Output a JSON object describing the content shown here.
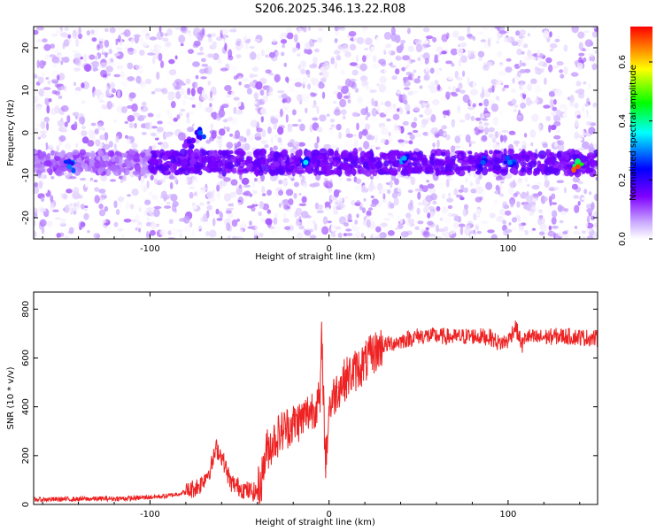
{
  "title": "S206.2025.346.13.22.R08",
  "chart_data": [
    {
      "type": "heatmap",
      "name": "spectrogram",
      "xlabel": "Height of straight line (km)",
      "ylabel": "Frequency (Hz)",
      "xlim": [
        -165,
        150
      ],
      "ylim": [
        -25,
        25
      ],
      "xticks": [
        -100,
        0,
        100
      ],
      "xtick_labels": [
        "-100",
        "0",
        "100"
      ],
      "yticks": [
        -20,
        -10,
        0,
        10,
        20
      ],
      "ytick_labels": [
        "-20",
        "-10",
        "0",
        "10",
        "20"
      ],
      "colorbar": {
        "label": "Normalized spectral amplitude",
        "range": [
          0,
          0.72
        ],
        "ticks": [
          0,
          0.2,
          0.4,
          0.6
        ],
        "tick_labels": [
          "0.0",
          "0.2",
          "0.4",
          "0.6"
        ],
        "colormap": [
          "#ffffff",
          "#7f00ff",
          "#0000ff",
          "#00ffff",
          "#00ff00",
          "#ffff00",
          "#ff0000"
        ]
      },
      "signal_band": {
        "frequency": -7,
        "description_points": [
          {
            "x": -145,
            "y": -8,
            "v": 0.3
          },
          {
            "x": -78,
            "y": -2,
            "v": 0.18
          },
          {
            "x": -72,
            "y": 0,
            "v": 0.28
          },
          {
            "x": -13,
            "y": -7,
            "v": 0.35
          },
          {
            "x": 42,
            "y": -6,
            "v": 0.32
          },
          {
            "x": 86,
            "y": -7,
            "v": 0.28
          },
          {
            "x": 101,
            "y": -7,
            "v": 0.3
          },
          {
            "x": 139,
            "y": -8,
            "v": 0.68
          }
        ]
      }
    },
    {
      "type": "line",
      "name": "snr",
      "xlabel": "Height of straight line (km)",
      "ylabel": "SNR (10 * v/v)",
      "xlim": [
        -165,
        150
      ],
      "ylim": [
        0,
        870
      ],
      "xticks": [
        -100,
        0,
        100
      ],
      "xtick_labels": [
        "-100",
        "0",
        "100"
      ],
      "yticks": [
        0,
        200,
        400,
        600,
        800
      ],
      "ytick_labels": [
        "0",
        "200",
        "400",
        "600",
        "800"
      ],
      "color": "#ee2222",
      "series": [
        {
          "name": "SNR",
          "x": [
            -165,
            -140,
            -110,
            -90,
            -80,
            -72,
            -66,
            -63,
            -60,
            -55,
            -50,
            -45,
            -41,
            -38,
            -35,
            -30,
            -25,
            -20,
            -15,
            -10,
            -5,
            -4,
            -2,
            0,
            5,
            10,
            15,
            20,
            25,
            30,
            40,
            50,
            60,
            70,
            80,
            90,
            95,
            100,
            104,
            108,
            110,
            115,
            120,
            130,
            140,
            150
          ],
          "y": [
            20,
            22,
            25,
            35,
            50,
            80,
            150,
            230,
            200,
            90,
            70,
            55,
            50,
            90,
            220,
            270,
            310,
            330,
            350,
            390,
            420,
            700,
            150,
            400,
            480,
            520,
            550,
            580,
            620,
            650,
            670,
            690,
            690,
            685,
            690,
            685,
            660,
            670,
            730,
            650,
            690,
            680,
            685,
            690,
            685,
            680
          ]
        }
      ]
    }
  ]
}
